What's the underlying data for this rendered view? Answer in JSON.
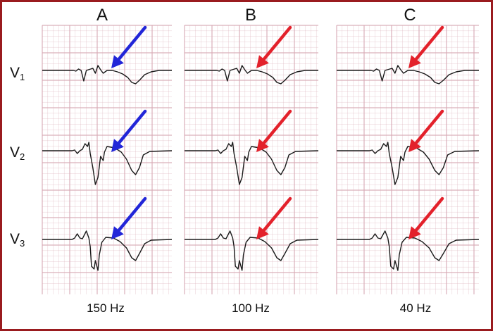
{
  "columns": [
    {
      "label": "A",
      "frequency": "150 Hz",
      "arrow_color": "#2226d8"
    },
    {
      "label": "B",
      "frequency": "100 Hz",
      "arrow_color": "#e3212b"
    },
    {
      "label": "C",
      "frequency": "40 Hz",
      "arrow_color": "#e3212b"
    }
  ],
  "leads": [
    {
      "letter": "V",
      "index": "1"
    },
    {
      "letter": "V",
      "index": "2"
    },
    {
      "letter": "V",
      "index": "3"
    }
  ],
  "colors": {
    "frame": "#9a1b1f",
    "grid": "#d8a8b4",
    "trace": "#1a1a1a"
  }
}
